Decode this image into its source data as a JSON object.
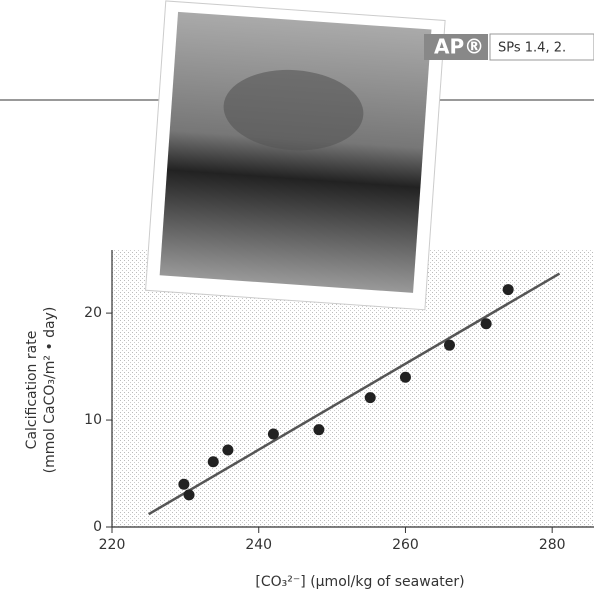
{
  "badge": {
    "logo": "AP®",
    "practices": "SPs 1.4, 2."
  },
  "chart_data": {
    "type": "scatter",
    "x_label": "[CO₃²⁻] (µmol/kg of seawater)",
    "y_label": [
      "Calcification rate",
      "(mmol CaCO₃/m² • day)"
    ],
    "x": [
      229.8,
      230.5,
      233.8,
      235.8,
      242,
      248.2,
      255.2,
      260,
      266,
      271,
      274
    ],
    "values": [
      4,
      3,
      6.1,
      7.2,
      8.7,
      9.1,
      12.1,
      14,
      17,
      19,
      22.2
    ],
    "color": "#222",
    "trendline": {
      "x": [
        225,
        281
      ],
      "values": [
        1.2,
        23.7
      ],
      "color": "#555"
    },
    "xlim": [
      220,
      285.7
    ],
    "ylim": [
      0,
      25.9
    ],
    "xticks": [
      220,
      240,
      260,
      280
    ],
    "yticks": [
      0,
      10,
      20
    ]
  }
}
